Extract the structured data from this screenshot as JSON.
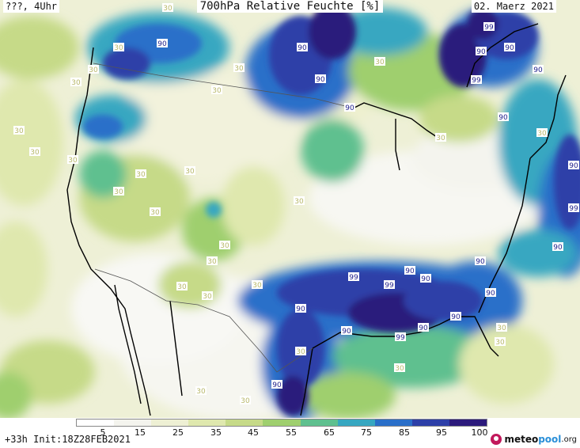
{
  "header": {
    "left": "???, 4Uhr",
    "title": "700hPa Relative Feuchte [%]",
    "date": "02. Maerz 2021"
  },
  "footer": {
    "run": "+33h Init:18Z28FEB2021",
    "brand_a": "meteo",
    "brand_b": "pool",
    "brand_c": ".org"
  },
  "colorbar": {
    "ticks": [
      "5",
      "15",
      "25",
      "35",
      "45",
      "55",
      "65",
      "75",
      "85",
      "95",
      "100"
    ],
    "colors": [
      "#ffffff",
      "#f4f4ee",
      "#eef0d4",
      "#dfe8ae",
      "#c6da88",
      "#9fcf6e",
      "#5fc08f",
      "#37a7c1",
      "#2a6fc9",
      "#2d3fa8",
      "#2c1a7c"
    ]
  },
  "map_labels": [
    {
      "text": "90"
    },
    {
      "text": "90"
    },
    {
      "text": "90"
    },
    {
      "text": "99"
    },
    {
      "text": "90"
    },
    {
      "text": "99"
    },
    {
      "text": "90"
    },
    {
      "text": "90"
    },
    {
      "text": "99"
    },
    {
      "text": "90"
    },
    {
      "text": "90"
    },
    {
      "text": "90"
    },
    {
      "text": "90"
    },
    {
      "text": "99"
    },
    {
      "text": "99"
    },
    {
      "text": "90"
    },
    {
      "text": "90"
    },
    {
      "text": "90"
    },
    {
      "text": "99"
    },
    {
      "text": "90"
    },
    {
      "text": "90"
    },
    {
      "text": "90"
    },
    {
      "text": "90"
    },
    {
      "text": "90"
    },
    {
      "text": "90"
    },
    {
      "text": "30"
    },
    {
      "text": "30"
    },
    {
      "text": "30"
    },
    {
      "text": "30"
    },
    {
      "text": "30"
    },
    {
      "text": "30"
    },
    {
      "text": "30"
    },
    {
      "text": "30"
    },
    {
      "text": "30"
    },
    {
      "text": "30"
    },
    {
      "text": "30"
    },
    {
      "text": "30"
    },
    {
      "text": "30"
    },
    {
      "text": "30"
    },
    {
      "text": "30"
    },
    {
      "text": "30"
    },
    {
      "text": "30"
    },
    {
      "text": "30"
    },
    {
      "text": "30"
    },
    {
      "text": "30"
    },
    {
      "text": "30"
    },
    {
      "text": "30"
    },
    {
      "text": "30"
    },
    {
      "text": "30"
    },
    {
      "text": "30"
    },
    {
      "text": "30"
    },
    {
      "text": "30"
    },
    {
      "text": "30"
    }
  ]
}
